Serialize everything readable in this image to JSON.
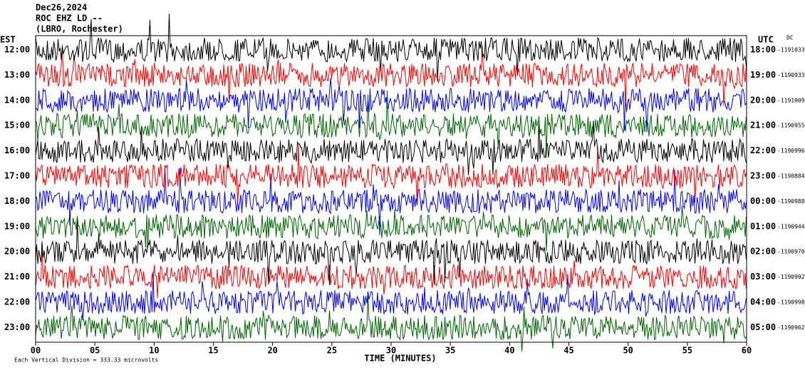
{
  "chart_data": {
    "type": "helicorder",
    "title": [
      "Dec26,2024",
      "ROC EHZ LD --",
      "(LBRO, Rochester)"
    ],
    "left_axis_label": "EST",
    "right_axis_label": "UTC",
    "dc_label": "DC",
    "rows": [
      {
        "local": "12:00",
        "utc": "18:00",
        "dc": -1191033,
        "color": "#000000"
      },
      {
        "local": "13:00",
        "utc": "19:00",
        "dc": -1190933,
        "color": "#ff0000"
      },
      {
        "local": "14:00",
        "utc": "20:00",
        "dc": -1191009,
        "color": "#0000ff"
      },
      {
        "local": "15:00",
        "utc": "21:00",
        "dc": -1190955,
        "color": "#006400"
      },
      {
        "local": "16:00",
        "utc": "22:00",
        "dc": -1190996,
        "color": "#000000"
      },
      {
        "local": "17:00",
        "utc": "23:00",
        "dc": -1190884,
        "color": "#ff0000"
      },
      {
        "local": "18:00",
        "utc": "00:00",
        "dc": -1190988,
        "color": "#0000ff"
      },
      {
        "local": "19:00",
        "utc": "01:00",
        "dc": -1190944,
        "color": "#006400"
      },
      {
        "local": "20:00",
        "utc": "02:00",
        "dc": -1190970,
        "color": "#000000"
      },
      {
        "local": "21:00",
        "utc": "03:00",
        "dc": -1190992,
        "color": "#ff0000"
      },
      {
        "local": "22:00",
        "utc": "04:00",
        "dc": -1190998,
        "color": "#0000ff"
      },
      {
        "local": "23:00",
        "utc": "05:00",
        "dc": -1190962,
        "color": "#006400"
      }
    ],
    "xlim": [
      0,
      60
    ],
    "xticks": [
      {
        "value": 0,
        "label": "00"
      },
      {
        "value": 5,
        "label": "05"
      },
      10,
      15,
      20,
      25,
      30,
      35,
      40,
      45,
      50,
      55,
      60
    ],
    "xlabel": "TIME (MINUTES)",
    "footnote": "Each Vertical Division =  333.33 microvolts"
  }
}
